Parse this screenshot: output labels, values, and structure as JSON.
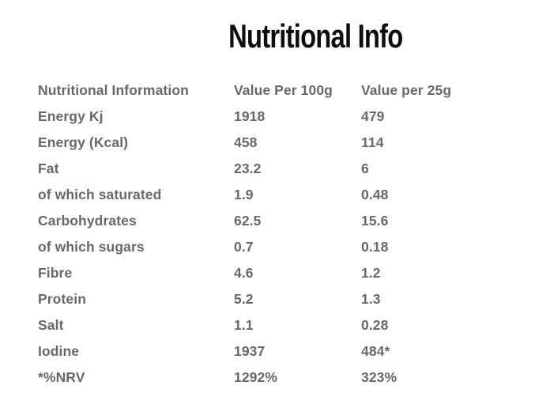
{
  "page": {
    "title": "Nutritional Info",
    "background_color": "#ffffff",
    "title_color": "#0e0e0e",
    "table_text_color": "#686868"
  },
  "table": {
    "columns": [
      "Nutritional Information",
      "Value Per 100g",
      "Value per 25g"
    ],
    "rows": [
      {
        "label": "Energy Kj",
        "per100g": "1918",
        "per25g": "479"
      },
      {
        "label": "Energy (Kcal)",
        "per100g": "458",
        "per25g": "114"
      },
      {
        "label": "Fat",
        "per100g": "23.2",
        "per25g": "6"
      },
      {
        "label": "of which saturated",
        "per100g": "1.9",
        "per25g": "0.48"
      },
      {
        "label": "Carbohydrates",
        "per100g": "62.5",
        "per25g": "15.6"
      },
      {
        "label": "of which sugars",
        "per100g": "0.7",
        "per25g": "0.18"
      },
      {
        "label": "Fibre",
        "per100g": "4.6",
        "per25g": "1.2"
      },
      {
        "label": "Protein",
        "per100g": "5.2",
        "per25g": "1.3"
      },
      {
        "label": "Salt",
        "per100g": "1.1",
        "per25g": "0.28"
      },
      {
        "label": "Iodine",
        "per100g": "1937",
        "per25g": "484*"
      },
      {
        "label": "*%NRV",
        "per100g": "1292%",
        "per25g": "323%"
      }
    ]
  }
}
